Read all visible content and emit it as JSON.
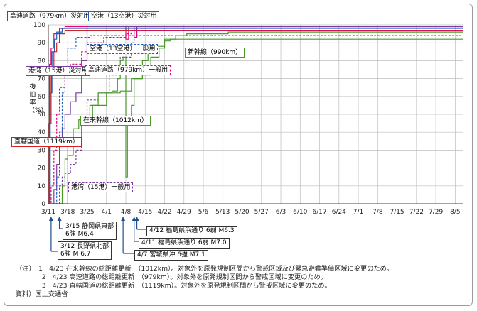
{
  "chart_data": {
    "type": "line",
    "ylabel": "復旧率（%）",
    "ylim": [
      0,
      100
    ],
    "yticks": [
      0,
      10,
      20,
      30,
      40,
      50,
      60,
      70,
      80,
      90,
      100
    ],
    "xlim": [
      0,
      150
    ],
    "xticks": [
      {
        "day": 0,
        "label": "3/11"
      },
      {
        "day": 7,
        "label": "3/18"
      },
      {
        "day": 14,
        "label": "3/25"
      },
      {
        "day": 21,
        "label": "4/1"
      },
      {
        "day": 28,
        "label": "4/8"
      },
      {
        "day": 35,
        "label": "4/15"
      },
      {
        "day": 42,
        "label": "4/22"
      },
      {
        "day": 49,
        "label": "4/29"
      },
      {
        "day": 56,
        "label": "5/6"
      },
      {
        "day": 63,
        "label": "5/13"
      },
      {
        "day": 70,
        "label": "5/20"
      },
      {
        "day": 77,
        "label": "5/27"
      },
      {
        "day": 84,
        "label": "6/3"
      },
      {
        "day": 91,
        "label": "6/10"
      },
      {
        "day": 98,
        "label": "6/17"
      },
      {
        "day": 105,
        "label": "6/24"
      },
      {
        "day": 112,
        "label": "7/1"
      },
      {
        "day": 119,
        "label": "7/8"
      },
      {
        "day": 126,
        "label": "7/15"
      },
      {
        "day": 133,
        "label": "7/22"
      },
      {
        "day": 140,
        "label": "7/29"
      },
      {
        "day": 147,
        "label": "8/5"
      }
    ],
    "grid": true,
    "series": [
      {
        "name": "高速道路（979km）災対用",
        "color": "#e60073",
        "dash": "solid",
        "points": [
          [
            0,
            0
          ],
          [
            0.4,
            0
          ],
          [
            0.4,
            78
          ],
          [
            1,
            78
          ],
          [
            1,
            87
          ],
          [
            2,
            87
          ],
          [
            2,
            95
          ],
          [
            4,
            95
          ],
          [
            4,
            98
          ],
          [
            6,
            98
          ],
          [
            6,
            99
          ],
          [
            28,
            99
          ],
          [
            28,
            92
          ],
          [
            29,
            92
          ],
          [
            29,
            99
          ],
          [
            31,
            99
          ],
          [
            31,
            93
          ],
          [
            32,
            93
          ],
          [
            32,
            99
          ],
          [
            150,
            99
          ]
        ]
      },
      {
        "name": "空港（13空港）災対用",
        "color": "#1f5fb8",
        "dash": "solid",
        "points": [
          [
            0,
            0
          ],
          [
            0.7,
            0
          ],
          [
            0.7,
            62
          ],
          [
            1.3,
            62
          ],
          [
            1.3,
            85
          ],
          [
            2.2,
            85
          ],
          [
            2.2,
            92
          ],
          [
            3,
            92
          ],
          [
            3,
            96
          ],
          [
            5,
            96
          ],
          [
            5,
            98
          ],
          [
            150,
            98
          ]
        ]
      },
      {
        "name": "直轄国道（1119km）",
        "color": "#d42020",
        "dash": "solid",
        "points": [
          [
            0,
            0
          ],
          [
            0.3,
            0
          ],
          [
            0.3,
            45
          ],
          [
            1,
            45
          ],
          [
            1,
            75
          ],
          [
            2,
            75
          ],
          [
            2,
            85
          ],
          [
            3,
            85
          ],
          [
            3,
            90
          ],
          [
            4,
            90
          ],
          [
            4,
            95
          ],
          [
            6,
            95
          ],
          [
            6,
            97
          ],
          [
            150,
            97
          ]
        ]
      },
      {
        "name": "港湾（15港）災対用",
        "color": "#7a3da0",
        "dash": "solid",
        "points": [
          [
            0,
            0
          ],
          [
            2,
            0
          ],
          [
            2,
            8
          ],
          [
            3,
            8
          ],
          [
            3,
            22
          ],
          [
            4,
            22
          ],
          [
            4,
            32
          ],
          [
            5,
            32
          ],
          [
            5,
            42
          ],
          [
            6,
            42
          ],
          [
            6,
            50
          ],
          [
            8,
            50
          ],
          [
            8,
            57
          ],
          [
            10,
            57
          ],
          [
            10,
            62
          ],
          [
            12,
            62
          ],
          [
            12,
            80
          ],
          [
            14,
            80
          ],
          [
            14,
            99
          ],
          [
            150,
            99
          ]
        ]
      },
      {
        "name": "港湾（15港）一般用",
        "color": "#7a3da0",
        "dash": "dash",
        "points": [
          [
            0,
            0
          ],
          [
            4,
            0
          ],
          [
            4,
            10
          ],
          [
            5,
            10
          ],
          [
            5,
            15
          ],
          [
            6,
            15
          ],
          [
            6,
            17
          ],
          [
            8,
            17
          ],
          [
            8,
            22
          ],
          [
            10,
            22
          ],
          [
            10,
            30
          ],
          [
            12,
            30
          ],
          [
            12,
            45
          ],
          [
            14,
            45
          ],
          [
            14,
            58
          ],
          [
            18,
            58
          ],
          [
            18,
            62
          ],
          [
            22,
            62
          ],
          [
            22,
            72
          ],
          [
            26,
            72
          ],
          [
            26,
            82
          ],
          [
            30,
            82
          ],
          [
            30,
            90
          ],
          [
            31,
            90
          ],
          [
            31,
            99
          ],
          [
            150,
            99
          ]
        ]
      },
      {
        "name": "空港（13空港）一般用",
        "color": "#1f5fb8",
        "dash": "dash",
        "points": [
          [
            0,
            0
          ],
          [
            3,
            0
          ],
          [
            3,
            15
          ],
          [
            4,
            15
          ],
          [
            4,
            40
          ],
          [
            5,
            40
          ],
          [
            5,
            62
          ],
          [
            6,
            62
          ],
          [
            6,
            72
          ],
          [
            7,
            72
          ],
          [
            7,
            87
          ],
          [
            10,
            87
          ],
          [
            10,
            93
          ],
          [
            15,
            93
          ],
          [
            15,
            94
          ],
          [
            150,
            94
          ]
        ]
      },
      {
        "name": "高速道路（979km）一般用",
        "color": "#e60073",
        "dash": "dash",
        "points": [
          [
            0,
            0
          ],
          [
            1,
            0
          ],
          [
            1,
            10
          ],
          [
            2,
            10
          ],
          [
            2,
            30
          ],
          [
            3,
            30
          ],
          [
            3,
            50
          ],
          [
            4,
            50
          ],
          [
            4,
            65
          ],
          [
            6,
            65
          ],
          [
            6,
            72
          ],
          [
            8,
            72
          ],
          [
            8,
            78
          ],
          [
            12,
            78
          ],
          [
            12,
            85
          ],
          [
            14,
            85
          ],
          [
            14,
            90
          ],
          [
            20,
            90
          ],
          [
            20,
            93
          ],
          [
            28,
            93
          ],
          [
            28,
            95
          ],
          [
            30,
            95
          ],
          [
            30,
            97
          ],
          [
            150,
            97
          ]
        ]
      },
      {
        "name": "在来幹線（1012km）",
        "color": "#4a9a2a",
        "dash": "solid",
        "points": [
          [
            0,
            0
          ],
          [
            5,
            0
          ],
          [
            5,
            10
          ],
          [
            6,
            10
          ],
          [
            6,
            25
          ],
          [
            7,
            25
          ],
          [
            7,
            32
          ],
          [
            9,
            32
          ],
          [
            9,
            42
          ],
          [
            11,
            42
          ],
          [
            11,
            47
          ],
          [
            15,
            47
          ],
          [
            15,
            55
          ],
          [
            18,
            55
          ],
          [
            18,
            62
          ],
          [
            23,
            62
          ],
          [
            23,
            63
          ],
          [
            25,
            63
          ],
          [
            25,
            70
          ],
          [
            26,
            70
          ],
          [
            26,
            80
          ],
          [
            27,
            80
          ],
          [
            27,
            82
          ],
          [
            28,
            82
          ],
          [
            28,
            15
          ],
          [
            28.6,
            15
          ],
          [
            28.6,
            48
          ],
          [
            30,
            48
          ],
          [
            30,
            55
          ],
          [
            31,
            55
          ],
          [
            31,
            70
          ],
          [
            34,
            70
          ],
          [
            34,
            80
          ],
          [
            36,
            80
          ],
          [
            36,
            84
          ],
          [
            39,
            84
          ],
          [
            39,
            88
          ],
          [
            42,
            88
          ],
          [
            42,
            92
          ],
          [
            150,
            92
          ]
        ]
      },
      {
        "name": "新幹線（990km）",
        "color": "#4a9a2a",
        "dash": "solid",
        "points": [
          [
            0,
            0
          ],
          [
            7,
            0
          ],
          [
            7,
            27
          ],
          [
            9,
            27
          ],
          [
            9,
            32
          ],
          [
            12,
            32
          ],
          [
            12,
            45
          ],
          [
            16,
            45
          ],
          [
            16,
            55
          ],
          [
            21,
            55
          ],
          [
            21,
            62
          ],
          [
            26,
            62
          ],
          [
            26,
            63
          ],
          [
            30,
            63
          ],
          [
            30,
            70
          ],
          [
            34,
            70
          ],
          [
            34,
            72
          ],
          [
            37,
            72
          ],
          [
            37,
            82
          ],
          [
            40,
            82
          ],
          [
            40,
            87
          ],
          [
            42,
            87
          ],
          [
            42,
            91
          ],
          [
            44,
            91
          ],
          [
            44,
            92
          ],
          [
            46,
            92
          ],
          [
            46,
            94
          ],
          [
            50,
            94
          ],
          [
            50,
            95
          ],
          [
            65,
            95
          ],
          [
            65,
            96
          ],
          [
            150,
            96
          ]
        ]
      }
    ]
  },
  "labels": {
    "hwy_saitai": "高速道路（979km）災対用",
    "airport_saitai": "空港（13空港）災対用",
    "airport_ippan": "空港（13空港）一般用",
    "shinkansen": "新幹線（990km）",
    "port_saitai": "港湾（15港）災対用",
    "hwy_ippan": "高速道路（979km）一般用",
    "zairai": "在来幹線（1012km）",
    "chokkatsu": "直轄国道（1119km）",
    "port_ippan": "港湾（15港）一般用"
  },
  "quakes": [
    {
      "day": 4,
      "line1": "3/15 静岡県東部",
      "line2": "6強 M6.4"
    },
    {
      "day": 1,
      "line1": "3/12 長野県北部",
      "line2": "6強 M 6.7"
    },
    {
      "day": 32,
      "text": "4/12 福島県浜通り 6弱 M6.3"
    },
    {
      "day": 31,
      "text": "4/11 福島県浜通り 6弱 M7.0"
    },
    {
      "day": 27,
      "text": "4/7 宮城県沖 6強 M7.1"
    }
  ],
  "notes": [
    "（注）　1　4/23 在来幹線の総距離更新　（1012km）。対象外を原発規制区間から警戒区域及び緊急避難準備区域に変更のため。",
    "　　　　2　4/23 高速道路の総距離更新　（979km）。対象外を原発規制区間から警戒区域に変更のため。",
    "　　　　3　4/23 直轄国道の総距離更新　（1119km）。対象外を原発規制区間から警戒区域に変更のため。",
    "資料）国土交通省"
  ],
  "colors": {
    "pink": "#e60073",
    "blue": "#1f5fb8",
    "red": "#d42020",
    "purple": "#7a3da0",
    "green": "#4a9a2a",
    "navy": "#1f4e8c"
  }
}
